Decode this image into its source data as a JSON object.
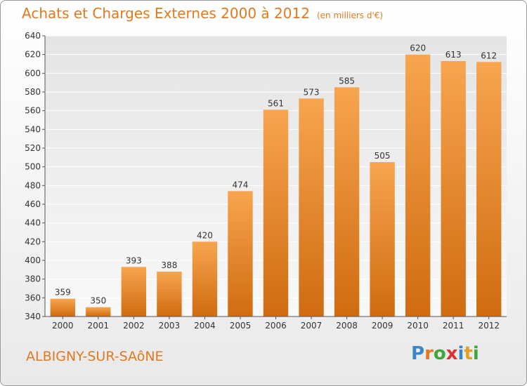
{
  "title": "Achats et Charges Externes 2000 à 2012",
  "unit_note": "(en milliers d'€)",
  "location": "ALBIGNY-SUR-SAôNE",
  "logo": {
    "text": "Proxiti",
    "letters": [
      {
        "ch": "P",
        "color": "#3a86c8"
      },
      {
        "ch": "r",
        "color": "#e07a20"
      },
      {
        "ch": "o",
        "color": "#3aa83a"
      },
      {
        "ch": "x",
        "color": "#e03030"
      },
      {
        "ch": "i",
        "color": "#3a86c8"
      },
      {
        "ch": "t",
        "color": "#e0a020"
      },
      {
        "ch": "i",
        "color": "#3aa83a"
      }
    ]
  },
  "colors": {
    "bar_top": "#f7a54f",
    "bar_bottom": "#d06b10",
    "title": "#e07a20"
  },
  "chart_data": {
    "type": "bar",
    "categories": [
      "2000",
      "2001",
      "2002",
      "2003",
      "2004",
      "2005",
      "2006",
      "2007",
      "2008",
      "2009",
      "2010",
      "2011",
      "2012"
    ],
    "values": [
      359,
      350,
      393,
      388,
      420,
      474,
      561,
      573,
      585,
      505,
      620,
      613,
      612
    ],
    "ylim": [
      340,
      640
    ],
    "yticks": [
      340,
      360,
      380,
      400,
      420,
      440,
      460,
      480,
      500,
      520,
      540,
      560,
      580,
      600,
      620,
      640
    ],
    "grid": true,
    "legend": "none"
  }
}
